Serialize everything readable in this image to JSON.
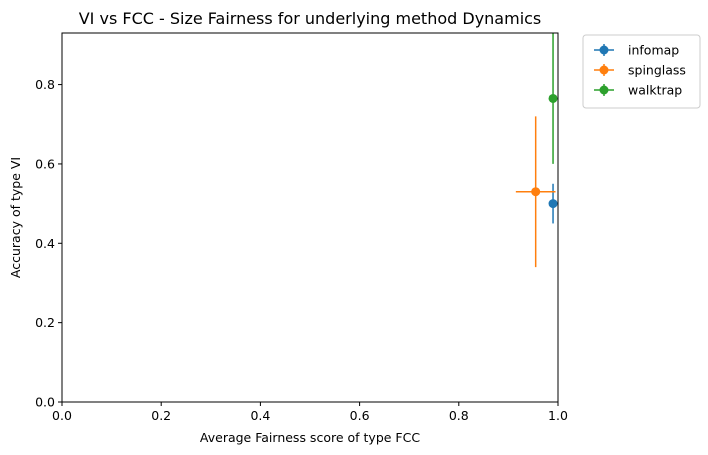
{
  "chart_data": {
    "type": "scatter",
    "title": "VI vs FCC - Size Fairness for underlying method Dynamics",
    "xlabel": "Average Fairness score of type FCC",
    "ylabel": "Accuracy of type VI",
    "xlim": [
      0.0,
      1.0
    ],
    "ylim": [
      0.0,
      0.93
    ],
    "xticks": [
      "0.0",
      "0.2",
      "0.4",
      "0.6",
      "0.8",
      "1.0"
    ],
    "yticks": [
      "0.0",
      "0.2",
      "0.4",
      "0.6",
      "0.8"
    ],
    "legend_position": "outside-upper-right",
    "series": [
      {
        "name": "infomap",
        "color": "#1f77b4",
        "x": 0.99,
        "y": 0.5,
        "xerr": 0.0,
        "yerr": 0.05
      },
      {
        "name": "spinglass",
        "color": "#ff7f0e",
        "x": 0.955,
        "y": 0.53,
        "xerr": 0.04,
        "yerr": 0.19
      },
      {
        "name": "walktrap",
        "color": "#2ca02c",
        "x": 0.99,
        "y": 0.765,
        "xerr": 0.0,
        "yerr": 0.165
      }
    ]
  }
}
